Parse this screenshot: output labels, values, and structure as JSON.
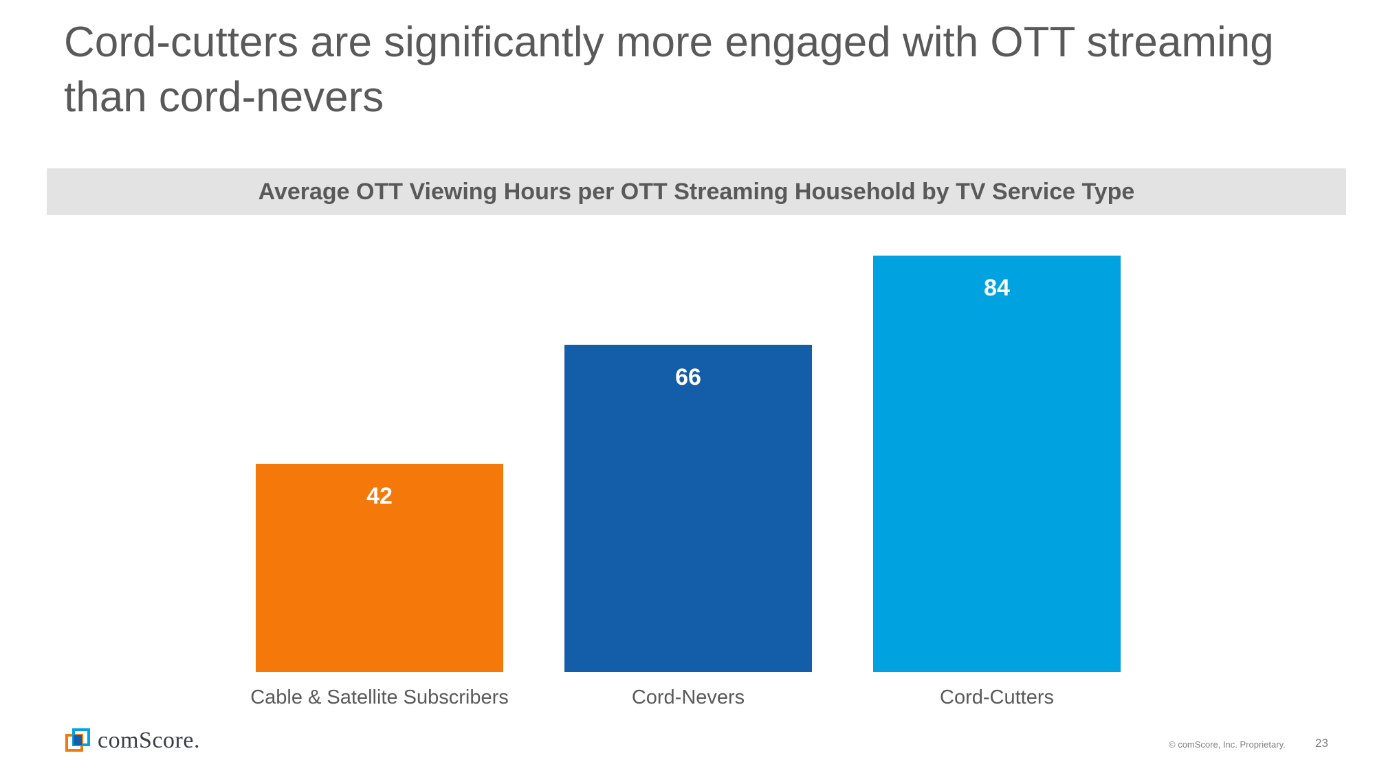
{
  "slide": {
    "title": "Cord-cutters are significantly more engaged with OTT streaming than cord-nevers",
    "brand_name": "comScore.",
    "copyright": "© comScore, Inc. Proprietary.",
    "page_number": "23"
  },
  "colors": {
    "orange": "#f5780a",
    "dark_blue": "#145da8",
    "light_blue": "#00a3e0",
    "title_text": "#595959",
    "band": "#e3e3e3"
  },
  "icons": {
    "brand_logo": "comscore-logo-icon"
  },
  "chart_data": {
    "type": "bar",
    "title": "Average OTT Viewing Hours per OTT Streaming Household by TV Service Type",
    "categories": [
      "Cable & Satellite Subscribers",
      "Cord-Nevers",
      "Cord-Cutters"
    ],
    "values": [
      42,
      66,
      84
    ],
    "data_labels": [
      "42",
      "66",
      "84"
    ],
    "bar_colors": [
      "#f5780a",
      "#145da8",
      "#00a3e0"
    ],
    "xlabel": "",
    "ylabel": "",
    "ylim": [
      0,
      84
    ],
    "grid": false,
    "legend": false
  }
}
